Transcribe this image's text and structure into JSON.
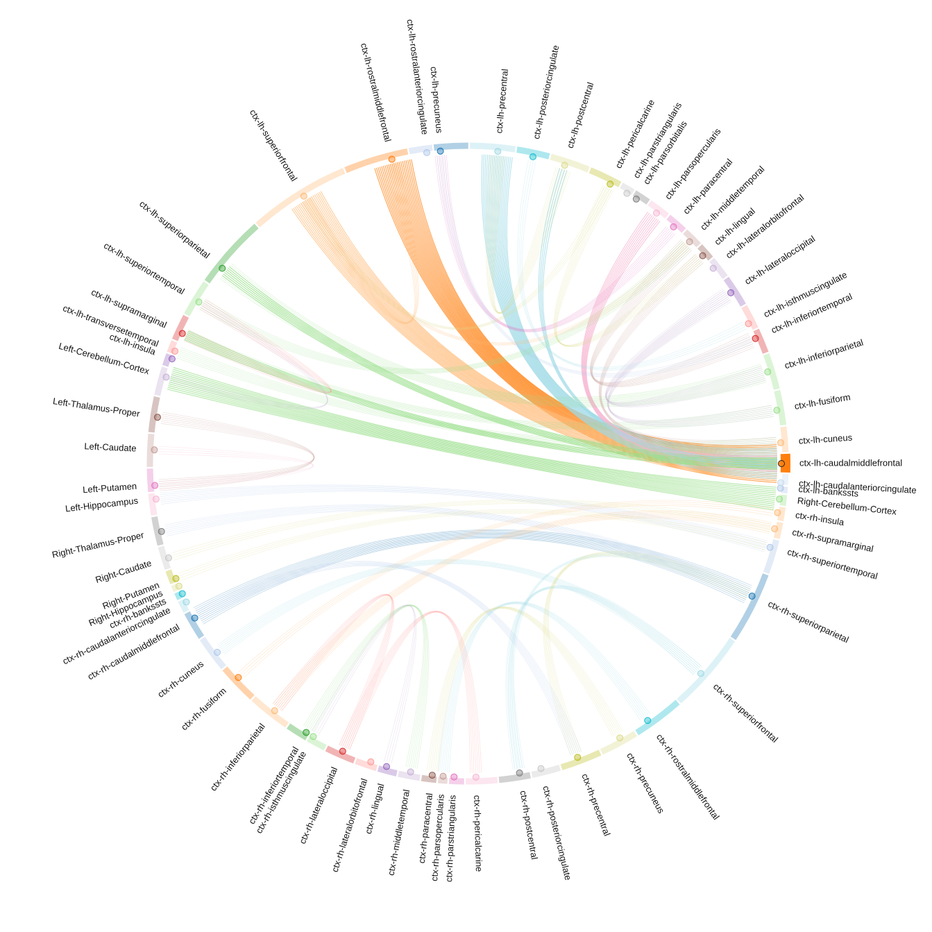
{
  "chart_data": {
    "type": "chord",
    "title": "",
    "focus_node": "ctx-lh-caudalmiddlefrontal",
    "nodes": [
      {
        "name": "ctx-lh-caudalmiddlefrontal",
        "angle": 0.0,
        "color": "#ff7f0e"
      },
      {
        "name": "ctx-lh-cuneus",
        "angle": -3.8,
        "color": "#ffbb78"
      },
      {
        "name": "ctx-lh-fusiform",
        "angle": -9.8,
        "color": "#98df8a"
      },
      {
        "name": "ctx-lh-inferiorparietal",
        "angle": -17.0,
        "color": "#98df8a"
      },
      {
        "name": "ctx-lh-inferiortemporal",
        "angle": -23.5,
        "color": "#d62728"
      },
      {
        "name": "ctx-lh-isthmuscingulate",
        "angle": -26.5,
        "color": "#ff9896"
      },
      {
        "name": "ctx-lh-lateraloccipital",
        "angle": -33.0,
        "color": "#9467bd"
      },
      {
        "name": "ctx-lh-lateralorbitofrontal",
        "angle": -38.5,
        "color": "#c5b0d5"
      },
      {
        "name": "ctx-lh-lingual",
        "angle": -41.5,
        "color": "#8c564b"
      },
      {
        "name": "ctx-lh-middletemporal",
        "angle": -45.0,
        "color": "#c49c94"
      },
      {
        "name": "ctx-lh-paracentral",
        "angle": -49.0,
        "color": "#e377c2"
      },
      {
        "name": "ctx-lh-parsopercularis",
        "angle": -53.0,
        "color": "#f7b6d2"
      },
      {
        "name": "ctx-lh-parsorbitalis",
        "angle": -57.5,
        "color": "#7f7f7f"
      },
      {
        "name": "ctx-lh-parstriangularis",
        "angle": -59.5,
        "color": "#c7c7c7"
      },
      {
        "name": "ctx-lh-pericalcarine",
        "angle": -63.0,
        "color": "#bcbd22"
      },
      {
        "name": "ctx-lh-postcentral",
        "angle": -72.0,
        "color": "#dbdb8d"
      },
      {
        "name": "ctx-lh-posteriorcingulate",
        "angle": -78.0,
        "color": "#17becf"
      },
      {
        "name": "ctx-lh-precentral",
        "angle": -84.5,
        "color": "#9edae5"
      },
      {
        "name": "ctx-lh-precuneus",
        "angle": -95.0,
        "color": "#1f77b4"
      },
      {
        "name": "ctx-lh-rostralanteriorcingulate",
        "angle": -97.5,
        "color": "#aec7e8"
      },
      {
        "name": "ctx-lh-rostralmiddlefrontal",
        "angle": -104.0,
        "color": "#ff7f0e"
      },
      {
        "name": "ctx-lh-superiorfrontal",
        "angle": -121.5,
        "color": "#ffbb78"
      },
      {
        "name": "ctx-lh-superiorparietal",
        "angle": -141.5,
        "color": "#2ca02c"
      },
      {
        "name": "ctx-lh-superiortemporal",
        "angle": -149.0,
        "color": "#98df8a"
      },
      {
        "name": "ctx-lh-supramarginal",
        "angle": -155.5,
        "color": "#d62728"
      },
      {
        "name": "ctx-lh-transversetemporal",
        "angle": -159.0,
        "color": "#ff9896"
      },
      {
        "name": "ctx-lh-insula",
        "angle": -160.5,
        "color": "#9467bd"
      },
      {
        "name": "Left-Cerebellum-Cortex",
        "angle": -164.0,
        "color": "#c5b0d5"
      },
      {
        "name": "Left-Thalamus-Proper",
        "angle": -171.5,
        "color": "#8c564b"
      },
      {
        "name": "Left-Caudate",
        "angle": -177.5,
        "color": "#c49c94"
      },
      {
        "name": "Left-Putamen",
        "angle": 176.0,
        "color": "#e377c2"
      },
      {
        "name": "Left-Hippocampus",
        "angle": 173.5,
        "color": "#f7b6d2"
      },
      {
        "name": "Right-Thalamus-Proper",
        "angle": 167.5,
        "color": "#7f7f7f"
      },
      {
        "name": "Right-Caudate",
        "angle": 162.5,
        "color": "#c7c7c7"
      },
      {
        "name": "Right-Putamen",
        "angle": 158.5,
        "color": "#bcbd22"
      },
      {
        "name": "Right-Hippocampus",
        "angle": 157.0,
        "color": "#dbdb8d"
      },
      {
        "name": "ctx-rh-bankssts",
        "angle": 155.5,
        "color": "#17becf"
      },
      {
        "name": "ctx-rh-caudalanteriorcingulate",
        "angle": 153.8,
        "color": "#9edae5"
      },
      {
        "name": "ctx-rh-caudalmiddlefrontal",
        "angle": 150.5,
        "color": "#1f77b4"
      },
      {
        "name": "ctx-rh-cuneus",
        "angle": 143.0,
        "color": "#aec7e8"
      },
      {
        "name": "ctx-rh-fusiform",
        "angle": 137.0,
        "color": "#ff7f0e"
      },
      {
        "name": "ctx-rh-inferiorparietal",
        "angle": 128.0,
        "color": "#ffbb78"
      },
      {
        "name": "ctx-rh-inferiortemporal",
        "angle": 121.0,
        "color": "#2ca02c"
      },
      {
        "name": "ctx-rh-isthmuscingulate",
        "angle": 119.5,
        "color": "#98df8a"
      },
      {
        "name": "ctx-rh-lateraloccipital",
        "angle": 113.5,
        "color": "#d62728"
      },
      {
        "name": "ctx-rh-lateralorbitofrontal",
        "angle": 108.0,
        "color": "#ff9896"
      },
      {
        "name": "ctx-rh-lingual",
        "angle": 105.0,
        "color": "#9467bd"
      },
      {
        "name": "ctx-rh-middletemporal",
        "angle": 100.5,
        "color": "#c5b0d5"
      },
      {
        "name": "ctx-rh-paracentral",
        "angle": 96.5,
        "color": "#8c564b"
      },
      {
        "name": "ctx-rh-parsopercularis",
        "angle": 94.5,
        "color": "#c49c94"
      },
      {
        "name": "ctx-rh-parstriangularis",
        "angle": 92.5,
        "color": "#e377c2"
      },
      {
        "name": "ctx-rh-pericalcarine",
        "angle": 88.5,
        "color": "#f7b6d2"
      },
      {
        "name": "ctx-rh-postcentral",
        "angle": 80.5,
        "color": "#7f7f7f"
      },
      {
        "name": "ctx-rh-posteriorcingulate",
        "angle": 76.5,
        "color": "#c7c7c7"
      },
      {
        "name": "ctx-rh-precentral",
        "angle": 69.5,
        "color": "#bcbd22"
      },
      {
        "name": "ctx-rh-precuneus",
        "angle": 61.0,
        "color": "#dbdb8d"
      },
      {
        "name": "ctx-rh-rostralmiddlefrontal",
        "angle": 55.0,
        "color": "#17becf"
      },
      {
        "name": "ctx-rh-superiorfrontal",
        "angle": 42.0,
        "color": "#9edae5"
      },
      {
        "name": "ctx-rh-superiorparietal",
        "angle": 25.0,
        "color": "#1f77b4"
      },
      {
        "name": "ctx-rh-superiortemporal",
        "angle": 15.5,
        "color": "#aec7e8"
      },
      {
        "name": "ctx-rh-supramarginal",
        "angle": 12.0,
        "color": "#ffbb78"
      },
      {
        "name": "ctx-rh-insula",
        "angle": 9.0,
        "color": "#ffbb78"
      },
      {
        "name": "Right-Cerebellum-Cortex",
        "angle": 6.5,
        "color": "#98df8a"
      },
      {
        "name": "ctx-lh-bankssts",
        "angle": 4.5,
        "color": "#aec7e8"
      },
      {
        "name": "ctx-lh-caudalanteriorcingulate",
        "angle": 3.5,
        "color": "#c6dbef"
      }
    ],
    "links": [
      {
        "source": "ctx-lh-caudalmiddlefrontal",
        "target": "ctx-lh-rostralmiddlefrontal",
        "weight": 1.0,
        "color": "#ff7f0e",
        "highlight": true
      },
      {
        "source": "ctx-lh-caudalmiddlefrontal",
        "target": "ctx-lh-superiorfrontal",
        "weight": 0.9,
        "color": "#ffbb78",
        "highlight": true
      },
      {
        "source": "ctx-lh-caudalmiddlefrontal",
        "target": "ctx-lh-precentral",
        "weight": 0.8,
        "color": "#9edae5",
        "highlight": true
      },
      {
        "source": "ctx-lh-caudalmiddlefrontal",
        "target": "ctx-lh-parsopercularis",
        "weight": 0.4,
        "color": "#f7b6d2",
        "highlight": true
      },
      {
        "source": "ctx-lh-caudalmiddlefrontal",
        "target": "ctx-lh-superiorparietal",
        "weight": 0.3,
        "color": "#98df8a",
        "highlight": true
      },
      {
        "source": "ctx-lh-caudalmiddlefrontal",
        "target": "ctx-lh-supramarginal",
        "weight": 0.25,
        "color": "#98df8a",
        "highlight": true
      },
      {
        "source": "ctx-lh-caudalmiddlefrontal",
        "target": "ctx-lh-postcentral",
        "weight": 0.2,
        "color": "#9edae5",
        "highlight": true
      },
      {
        "source": "Right-Cerebellum-Cortex",
        "target": "Left-Cerebellum-Cortex",
        "weight": 0.6,
        "color": "#98df8a",
        "highlight": true
      },
      {
        "source": "ctx-lh-inferiorparietal",
        "target": "ctx-lh-superiorparietal",
        "weight": 0.5,
        "color": "#98df8a"
      },
      {
        "source": "ctx-lh-fusiform",
        "target": "ctx-lh-supramarginal",
        "weight": 0.3,
        "color": "#98df8a"
      },
      {
        "source": "ctx-lh-cuneus",
        "target": "ctx-lh-transversetemporal",
        "weight": 0.3,
        "color": "#98df8a"
      },
      {
        "source": "ctx-lh-lateraloccipital",
        "target": "ctx-lh-inferiorparietal",
        "weight": 0.4,
        "color": "#c5b0d5"
      },
      {
        "source": "ctx-lh-lateraloccipital",
        "target": "ctx-lh-fusiform",
        "weight": 0.3,
        "color": "#c5b0d5"
      },
      {
        "source": "ctx-lh-middletemporal",
        "target": "ctx-lh-inferiortemporal",
        "weight": 0.4,
        "color": "#c49c94"
      },
      {
        "source": "ctx-lh-lingual",
        "target": "ctx-lh-cuneus",
        "weight": 0.3,
        "color": "#c49c94"
      },
      {
        "source": "ctx-lh-paracentral",
        "target": "ctx-lh-precuneus",
        "weight": 0.3,
        "color": "#e377c2"
      },
      {
        "source": "ctx-lh-pericalcarine",
        "target": "ctx-lh-lingual",
        "weight": 0.3,
        "color": "#dbdb8d"
      },
      {
        "source": "ctx-lh-pericalcarine",
        "target": "ctx-lh-superiorfrontal",
        "weight": 0.2,
        "color": "#dbdb8d"
      },
      {
        "source": "ctx-lh-postcentral",
        "target": "ctx-lh-precentral",
        "weight": 0.4,
        "color": "#dbdb8d"
      },
      {
        "source": "ctx-lh-posteriorcingulate",
        "target": "ctx-lh-isthmuscingulate",
        "weight": 0.2,
        "color": "#9edae5"
      },
      {
        "source": "ctx-lh-precuneus",
        "target": "ctx-lh-inferiortemporal",
        "weight": 0.2,
        "color": "#aec7e8"
      },
      {
        "source": "ctx-lh-superiorfrontal",
        "target": "ctx-lh-rostralmiddlefrontal",
        "weight": 0.3,
        "color": "#ffbb78"
      },
      {
        "source": "ctx-lh-superiorfrontal",
        "target": "ctx-lh-middletemporal",
        "weight": 0.2,
        "color": "#ffbb78"
      },
      {
        "source": "ctx-lh-superiortemporal",
        "target": "ctx-lh-middletemporal",
        "weight": 0.3,
        "color": "#98df8a"
      },
      {
        "source": "ctx-lh-supramarginal",
        "target": "ctx-lh-superiortemporal",
        "weight": 0.3,
        "color": "#ff9896"
      },
      {
        "source": "Left-Thalamus-Proper",
        "target": "Left-Putamen",
        "weight": 0.3,
        "color": "#c49c94"
      },
      {
        "source": "Left-Caudate",
        "target": "Left-Putamen",
        "weight": 0.2,
        "color": "#f7b6d2"
      },
      {
        "source": "Left-Cerebellum-Cortex",
        "target": "ctx-lh-superiortemporal",
        "weight": 0.2,
        "color": "#c5b0d5"
      },
      {
        "source": "ctx-rh-superiorparietal",
        "target": "ctx-rh-caudalmiddlefrontal",
        "weight": 0.5,
        "color": "#1f77b4"
      },
      {
        "source": "ctx-rh-superiorparietal",
        "target": "Right-Thalamus-Proper",
        "weight": 0.3,
        "color": "#aec7e8"
      },
      {
        "source": "ctx-rh-superiorfrontal",
        "target": "ctx-rh-postcentral",
        "weight": 0.3,
        "color": "#9edae5"
      },
      {
        "source": "ctx-rh-superiorfrontal",
        "target": "ctx-rh-cuneus",
        "weight": 0.3,
        "color": "#9edae5"
      },
      {
        "source": "ctx-rh-superiortemporal",
        "target": "Left-Hippocampus",
        "weight": 0.3,
        "color": "#aec7e8"
      },
      {
        "source": "ctx-rh-supramarginal",
        "target": "ctx-rh-inferiorparietal",
        "weight": 0.3,
        "color": "#ffbb78"
      },
      {
        "source": "ctx-rh-insula",
        "target": "ctx-rh-fusiform",
        "weight": 0.2,
        "color": "#ffbb78"
      },
      {
        "source": "ctx-rh-rostralmiddlefrontal",
        "target": "ctx-rh-parsopercularis",
        "weight": 0.3,
        "color": "#9edae5"
      },
      {
        "source": "ctx-rh-precentral",
        "target": "ctx-rh-superiorparietal",
        "weight": 0.3,
        "color": "#dbdb8d"
      },
      {
        "source": "ctx-rh-precuneus",
        "target": "ctx-rh-paracentral",
        "weight": 0.3,
        "color": "#dbdb8d"
      },
      {
        "source": "ctx-rh-lateraloccipital",
        "target": "ctx-rh-inferiorparietal",
        "weight": 0.3,
        "color": "#ff9896"
      },
      {
        "source": "ctx-rh-lateraloccipital",
        "target": "ctx-rh-pericalcarine",
        "weight": 0.3,
        "color": "#ff9896"
      },
      {
        "source": "ctx-rh-inferiortemporal",
        "target": "ctx-rh-middletemporal",
        "weight": 0.3,
        "color": "#98df8a"
      },
      {
        "source": "ctx-rh-caudalmiddlefrontal",
        "target": "ctx-rh-precentral",
        "weight": 0.3,
        "color": "#aec7e8"
      },
      {
        "source": "Right-Putamen",
        "target": "ctx-rh-superiortemporal",
        "weight": 0.2,
        "color": "#dbdb8d"
      },
      {
        "source": "Right-Caudate",
        "target": "ctx-rh-supramarginal",
        "weight": 0.2,
        "color": "#dbdb8d"
      },
      {
        "source": "ctx-rh-lingual",
        "target": "ctx-rh-isthmuscingulate",
        "weight": 0.2,
        "color": "#c5b0d5"
      },
      {
        "source": "ctx-rh-postcentral",
        "target": "ctx-rh-superiorparietal",
        "weight": 0.2,
        "color": "#9edae5"
      }
    ]
  }
}
